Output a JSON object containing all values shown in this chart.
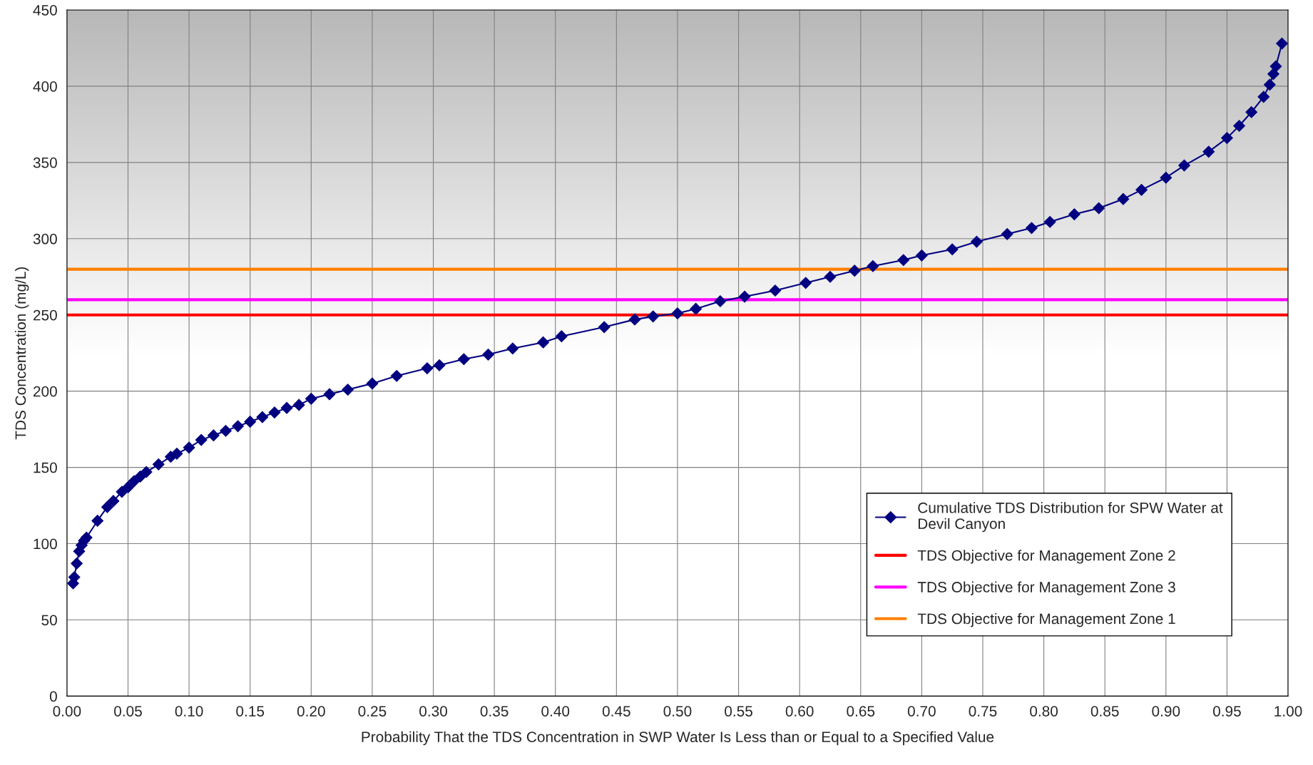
{
  "chart_data": {
    "type": "line",
    "xlabel": "Probability That the TDS Concentration in SWP Water Is Less than or Equal to a Specified Value",
    "ylabel": "TDS Concentration (mg/L)",
    "series": [
      {
        "name": "Cumulative TDS Distribution for SPW Water at\nDevil Canyon",
        "color": "#000080",
        "x": [
          0.005,
          0.006,
          0.008,
          0.01,
          0.012,
          0.014,
          0.016,
          0.025,
          0.033,
          0.038,
          0.045,
          0.05,
          0.055,
          0.06,
          0.065,
          0.075,
          0.085,
          0.09,
          0.1,
          0.11,
          0.12,
          0.13,
          0.14,
          0.15,
          0.16,
          0.17,
          0.18,
          0.19,
          0.2,
          0.215,
          0.23,
          0.25,
          0.27,
          0.295,
          0.305,
          0.325,
          0.345,
          0.365,
          0.39,
          0.405,
          0.44,
          0.465,
          0.48,
          0.5,
          0.515,
          0.535,
          0.555,
          0.58,
          0.605,
          0.625,
          0.645,
          0.66,
          0.685,
          0.7,
          0.725,
          0.745,
          0.77,
          0.79,
          0.805,
          0.825,
          0.845,
          0.865,
          0.88,
          0.9,
          0.915,
          0.935,
          0.95,
          0.96,
          0.97,
          0.98,
          0.985,
          0.988,
          0.99,
          0.995
        ],
        "values": [
          74,
          78,
          87,
          95,
          99,
          102,
          104,
          115,
          124,
          128,
          134,
          137,
          141,
          144,
          147,
          152,
          157,
          159,
          163,
          168,
          171,
          174,
          177,
          180,
          183,
          186,
          189,
          191,
          195,
          198,
          201,
          205,
          210,
          215,
          217,
          221,
          224,
          228,
          232,
          236,
          242,
          247,
          249,
          251,
          254,
          259,
          262,
          266,
          271,
          275,
          279,
          282,
          286,
          289,
          293,
          298,
          303,
          307,
          311,
          316,
          320,
          326,
          332,
          340,
          348,
          357,
          366,
          374,
          383,
          393,
          401,
          408,
          413,
          428
        ]
      }
    ],
    "marker": "diamond",
    "line_style": "solid",
    "ref_lines": [
      {
        "axis": "y",
        "value": 250,
        "label": "TDS Objective for Management Zone 2",
        "color": "#ff0000"
      },
      {
        "axis": "y",
        "value": 260,
        "label": "TDS Objective for Management Zone 3",
        "color": "#ff00ff"
      },
      {
        "axis": "y",
        "value": 280,
        "label": "TDS Objective for Management Zone 1",
        "color": "#ff8000"
      }
    ],
    "xlim": [
      0,
      1
    ],
    "xticks": [
      {
        "value": 0,
        "label": "0.00"
      },
      0.05,
      {
        "value": 0.1,
        "label": "0.10"
      },
      0.15,
      {
        "value": 0.2,
        "label": "0.20"
      },
      0.25,
      {
        "value": 0.3,
        "label": "0.30"
      },
      0.35,
      {
        "value": 0.4,
        "label": "0.40"
      },
      0.45,
      {
        "value": 0.5,
        "label": "0.50"
      },
      0.55,
      {
        "value": 0.6,
        "label": "0.60"
      },
      0.65,
      {
        "value": 0.7,
        "label": "0.70"
      },
      0.75,
      {
        "value": 0.8,
        "label": "0.80"
      },
      0.85,
      {
        "value": 0.9,
        "label": "0.90"
      },
      0.95,
      {
        "value": 1,
        "label": "1.00"
      }
    ],
    "ylim": [
      0,
      450
    ],
    "yticks": [
      0,
      50,
      100,
      150,
      200,
      250,
      300,
      350,
      400,
      450
    ],
    "grid": true,
    "legend": "bottom right"
  }
}
